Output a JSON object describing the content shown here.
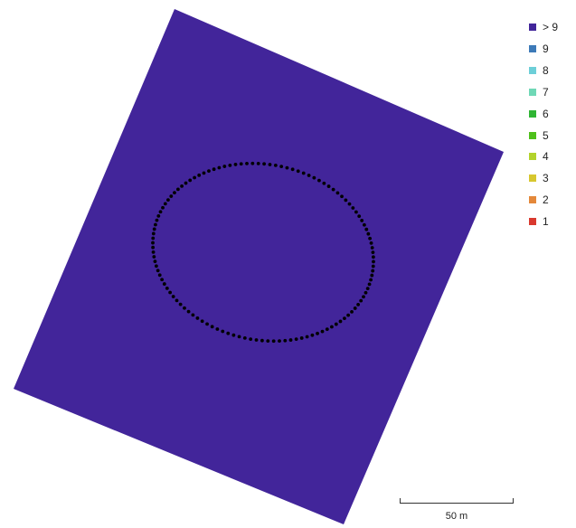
{
  "map": {
    "coverage_color": "#42259a",
    "camera_marker_color": "#000000",
    "camera_marker_count": 120
  },
  "legend": {
    "items": [
      {
        "label": "> 9",
        "color": "#42259a"
      },
      {
        "label": "9",
        "color": "#3d7ab8"
      },
      {
        "label": "8",
        "color": "#6dcfd8"
      },
      {
        "label": "7",
        "color": "#6fd8b6"
      },
      {
        "label": "6",
        "color": "#2fb534"
      },
      {
        "label": "5",
        "color": "#4fc01b"
      },
      {
        "label": "4",
        "color": "#b3d32c"
      },
      {
        "label": "3",
        "color": "#d7c72f"
      },
      {
        "label": "2",
        "color": "#e4883a"
      },
      {
        "label": "1",
        "color": "#d9392e"
      }
    ]
  },
  "scale_bar": {
    "label": "50 m"
  }
}
